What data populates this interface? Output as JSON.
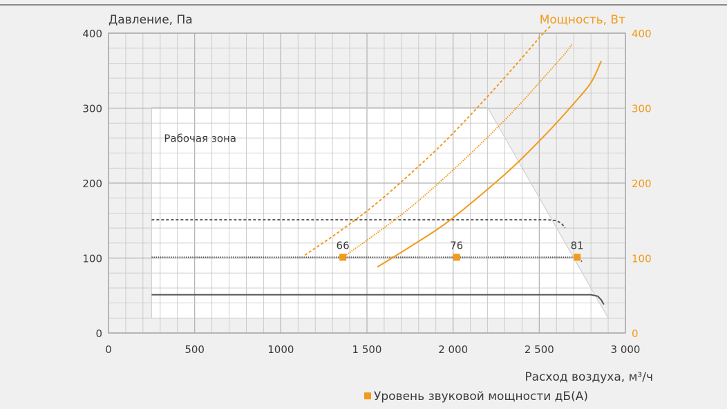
{
  "chart_data": {
    "type": "line",
    "left_axis_label": "Давление, Па",
    "right_axis_label": "Мощность, Вт",
    "xlabel": "Расход воздуха, м³/ч",
    "x_ticks": [
      "0",
      "500",
      "1000",
      "1 500",
      "2 000",
      "2 500",
      "3 000"
    ],
    "y_ticks_left": [
      "0",
      "100",
      "200",
      "300",
      "400"
    ],
    "y_ticks_right": [
      "0",
      "100",
      "200",
      "300",
      "400"
    ],
    "xlim": [
      0,
      3000
    ],
    "ylim": [
      0,
      400
    ],
    "grid": true,
    "work_zone_label": "Рабочая зона",
    "legend_label": "Уровень звуковой мощности дБ(А)",
    "colors": {
      "pressure": "#555555",
      "power": "#f29a1a",
      "marker": "#f29a1a",
      "grid": "#c8c8c8"
    },
    "pressure_series": [
      {
        "style": "solid",
        "points": [
          [
            250,
            51
          ],
          [
            2800,
            51
          ],
          [
            2840,
            49
          ],
          [
            2860,
            44
          ],
          [
            2875,
            38
          ]
        ]
      },
      {
        "style": "dotted",
        "points": [
          [
            250,
            101
          ],
          [
            2700,
            101
          ],
          [
            2730,
            99
          ],
          [
            2750,
            95
          ]
        ]
      },
      {
        "style": "dashed",
        "points": [
          [
            250,
            151
          ],
          [
            2550,
            151
          ],
          [
            2600,
            150
          ],
          [
            2630,
            146
          ],
          [
            2650,
            140
          ]
        ]
      }
    ],
    "power_series": [
      {
        "style": "solid",
        "points": [
          [
            1560,
            88
          ],
          [
            1750,
            115
          ],
          [
            1950,
            145
          ],
          [
            2150,
            182
          ],
          [
            2350,
            222
          ],
          [
            2550,
            268
          ],
          [
            2700,
            306
          ],
          [
            2800,
            334
          ],
          [
            2860,
            363
          ]
        ]
      },
      {
        "style": "dotted",
        "points": [
          [
            1360,
            101
          ],
          [
            1550,
            132
          ],
          [
            1750,
            167
          ],
          [
            1950,
            207
          ],
          [
            2150,
            250
          ],
          [
            2350,
            296
          ],
          [
            2550,
            347
          ],
          [
            2650,
            373
          ],
          [
            2690,
            385
          ]
        ]
      },
      {
        "style": "dashed",
        "points": [
          [
            1140,
            104
          ],
          [
            1350,
            137
          ],
          [
            1550,
            172
          ],
          [
            1750,
            212
          ],
          [
            1950,
            255
          ],
          [
            2150,
            303
          ],
          [
            2350,
            354
          ],
          [
            2520,
            399
          ],
          [
            2570,
            410
          ]
        ]
      }
    ],
    "sound_markers": [
      {
        "x": 1360,
        "y": 101,
        "label": "66"
      },
      {
        "x": 2020,
        "y": 101,
        "label": "76"
      },
      {
        "x": 2720,
        "y": 101,
        "label": "81"
      }
    ],
    "work_zone": {
      "x_start": 250,
      "top": 301,
      "diagonal_from": [
        2200,
        301
      ],
      "diagonal_to": [
        2900,
        20
      ]
    }
  }
}
